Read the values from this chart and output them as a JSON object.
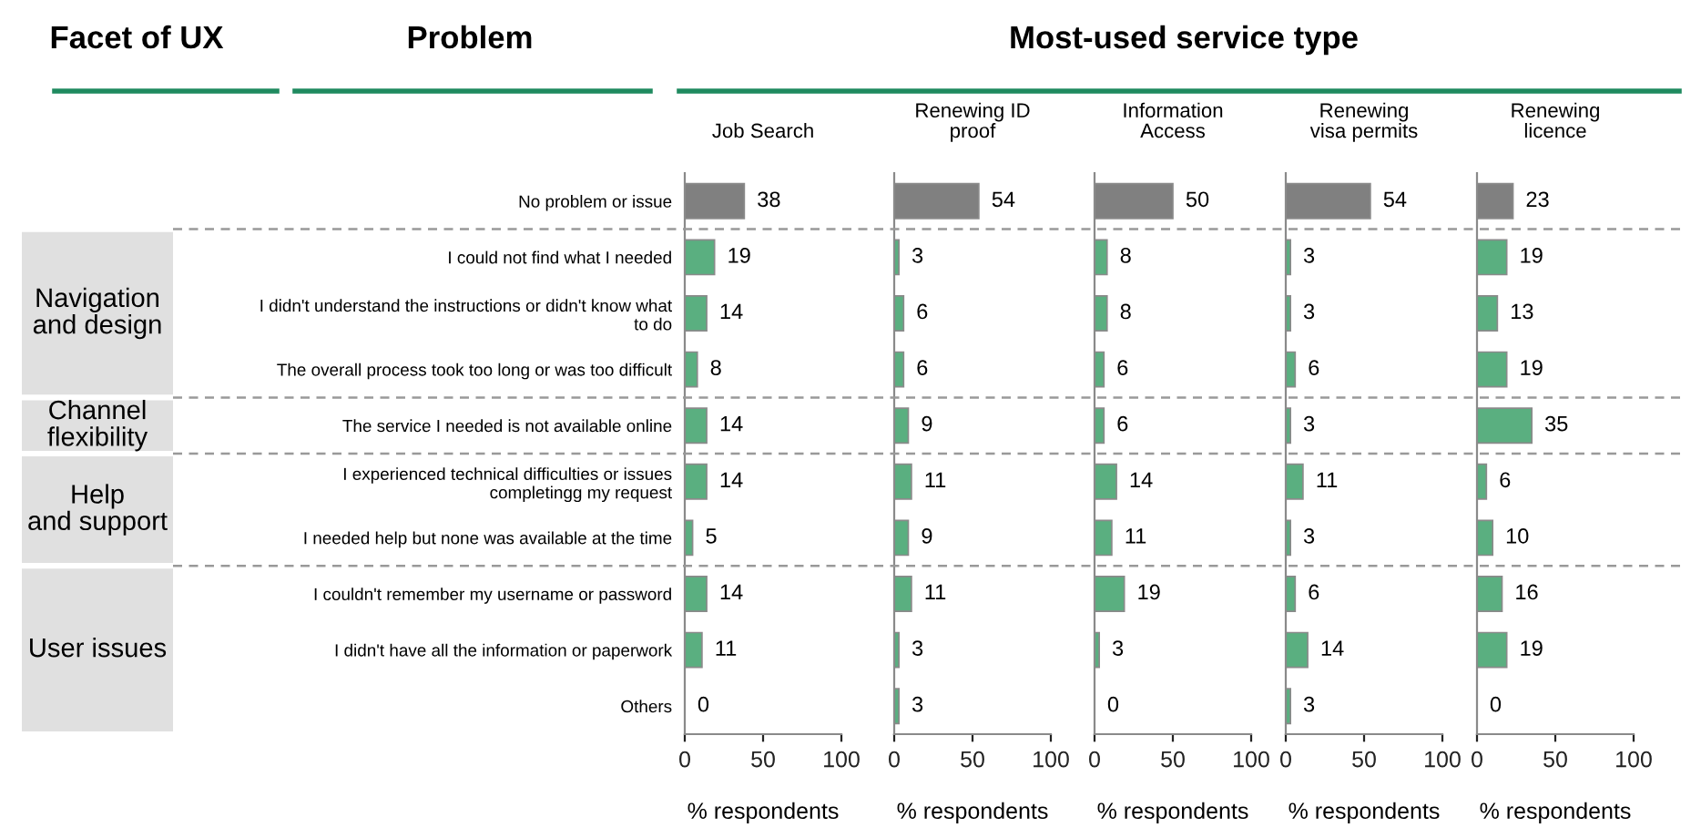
{
  "chart_data": [
    {
      "type": "bar",
      "orientation": "horizontal",
      "title": "Job Search",
      "xlabel": "% respondents",
      "categories": [
        "No problem or issue",
        "I could not find what I needed",
        "I didn't understand the instructions or didn't know what to do",
        "The overall process took too long or was too difficult",
        "The service I needed is not available online",
        "I experienced technical difficulties or issues completingg my request",
        "I needed help but none was available at the time",
        "I couldn't remember my username or password",
        "I didn't have all the information or paperwork",
        "Others"
      ],
      "values": [
        38,
        19,
        14,
        8,
        14,
        14,
        5,
        14,
        11,
        0
      ],
      "colors": [
        "#808080",
        "#5aaf80",
        "#5aaf80",
        "#5aaf80",
        "#5aaf80",
        "#5aaf80",
        "#5aaf80",
        "#5aaf80",
        "#5aaf80",
        "#5aaf80"
      ],
      "xlim": [
        0,
        100
      ],
      "xticks": [
        0,
        50,
        100
      ],
      "data_labels": true,
      "annotations": [
        "Facet of UX",
        "Problem",
        "Most-used service type",
        "Navigation and design",
        "Channel flexibility",
        "Help and support",
        "User issues"
      ]
    },
    {
      "type": "bar",
      "orientation": "horizontal",
      "title": "Renewing ID proof",
      "xlabel": "% respondents",
      "categories": [
        null,
        null,
        null,
        null,
        null,
        null,
        null,
        null,
        null,
        null
      ],
      "values": [
        54,
        3,
        6,
        6,
        9,
        11,
        9,
        11,
        3,
        3
      ],
      "colors": [
        "#808080",
        "#5aaf80",
        "#5aaf80",
        "#5aaf80",
        "#5aaf80",
        "#5aaf80",
        "#5aaf80",
        "#5aaf80",
        "#5aaf80",
        "#5aaf80"
      ],
      "xlim": [
        0,
        100
      ],
      "xticks": [
        0,
        50,
        100
      ],
      "data_labels": true,
      "tick_labels": "x"
    },
    {
      "type": "bar",
      "orientation": "horizontal",
      "title": "Information Access",
      "xlabel": "% respondents",
      "categories": [
        null,
        null,
        null,
        null,
        null,
        null,
        null,
        null,
        null,
        null
      ],
      "values": [
        50,
        8,
        8,
        6,
        6,
        14,
        11,
        19,
        3,
        0
      ],
      "colors": [
        "#808080",
        "#5aaf80",
        "#5aaf80",
        "#5aaf80",
        "#5aaf80",
        "#5aaf80",
        "#5aaf80",
        "#5aaf80",
        "#5aaf80",
        "#5aaf80"
      ],
      "xlim": [
        0,
        100
      ],
      "xticks": [
        0,
        50,
        100
      ],
      "data_labels": true,
      "tick_labels": "x"
    },
    {
      "type": "bar",
      "orientation": "horizontal",
      "title": "Renewing visa permits",
      "xlabel": "% respondents",
      "categories": [
        null,
        null,
        null,
        null,
        null,
        null,
        null,
        null,
        null,
        null
      ],
      "values": [
        54,
        3,
        3,
        6,
        3,
        11,
        3,
        6,
        14,
        3
      ],
      "colors": [
        "#808080",
        "#5aaf80",
        "#5aaf80",
        "#5aaf80",
        "#5aaf80",
        "#5aaf80",
        "#5aaf80",
        "#5aaf80",
        "#5aaf80",
        "#5aaf80"
      ],
      "xlim": [
        0,
        100
      ],
      "xticks": [
        0,
        50,
        100
      ],
      "data_labels": true,
      "tick_labels": "x"
    },
    {
      "type": "bar",
      "orientation": "horizontal",
      "title": "Renewing licence",
      "xlabel": "% respondents",
      "categories": [
        null,
        null,
        null,
        null,
        null,
        null,
        null,
        null,
        null,
        null
      ],
      "values": [
        23,
        19,
        13,
        19,
        35,
        6,
        10,
        16,
        19,
        0
      ],
      "colors": [
        "#808080",
        "#5aaf80",
        "#5aaf80",
        "#5aaf80",
        "#5aaf80",
        "#5aaf80",
        "#5aaf80",
        "#5aaf80",
        "#5aaf80",
        "#5aaf80"
      ],
      "xlim": [
        0,
        100
      ],
      "xticks": [
        0,
        50,
        100
      ],
      "data_labels": true,
      "tick_labels": "x"
    }
  ]
}
